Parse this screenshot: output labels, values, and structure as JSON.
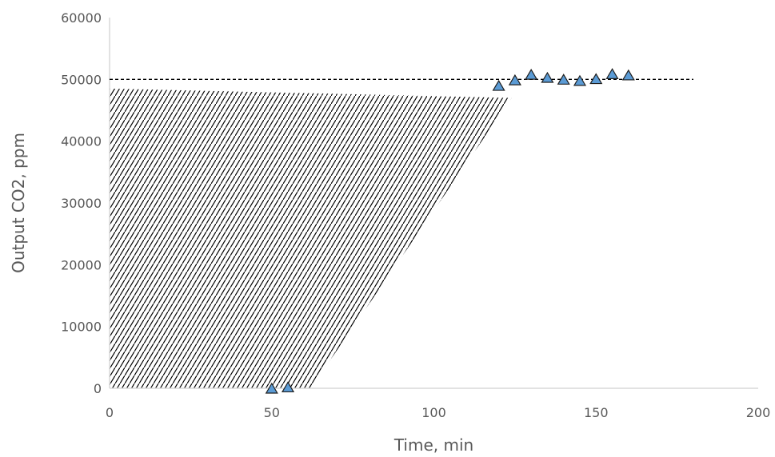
{
  "chart_data": {
    "type": "scatter",
    "title": "",
    "xlabel": "Time, min",
    "ylabel": "Output CO2, ppm",
    "xlim": [
      0,
      200
    ],
    "ylim": [
      0,
      60000
    ],
    "x_ticks": [
      0,
      50,
      100,
      150,
      200
    ],
    "y_ticks": [
      0,
      10000,
      20000,
      30000,
      40000,
      50000,
      60000
    ],
    "x_tick_labels": [
      "0",
      "50",
      "100",
      "150",
      "200"
    ],
    "y_tick_labels": [
      "0",
      "10000",
      "20000",
      "30000",
      "40000",
      "50000",
      "60000"
    ],
    "grid": false,
    "legend": "none",
    "series": [
      {
        "marker": "triangle",
        "color": "#5b9bd5",
        "edge_color": "#1f1f1f",
        "points": [
          {
            "x": 50,
            "y": 0
          },
          {
            "x": 55,
            "y": 200
          },
          {
            "x": 120,
            "y": 49000
          },
          {
            "x": 125,
            "y": 49900
          },
          {
            "x": 130,
            "y": 50800
          },
          {
            "x": 135,
            "y": 50300
          },
          {
            "x": 140,
            "y": 50000
          },
          {
            "x": 145,
            "y": 49800
          },
          {
            "x": 150,
            "y": 50100
          },
          {
            "x": 155,
            "y": 50900
          },
          {
            "x": 160,
            "y": 50700
          }
        ]
      }
    ],
    "reference_line": {
      "y": 50000,
      "x_from": 0,
      "x_to": 180,
      "style": "dashed",
      "color": "#000000"
    },
    "hatched_region": {
      "style": "diagonal-hatch",
      "color": "#000000",
      "boundary": [
        {
          "x": 0,
          "y": 0
        },
        {
          "x": 62,
          "y": 0
        },
        {
          "x": 124,
          "y": 47000
        },
        {
          "x": 0,
          "y": 48500
        }
      ]
    },
    "axis_color": "#d9d9d9"
  }
}
